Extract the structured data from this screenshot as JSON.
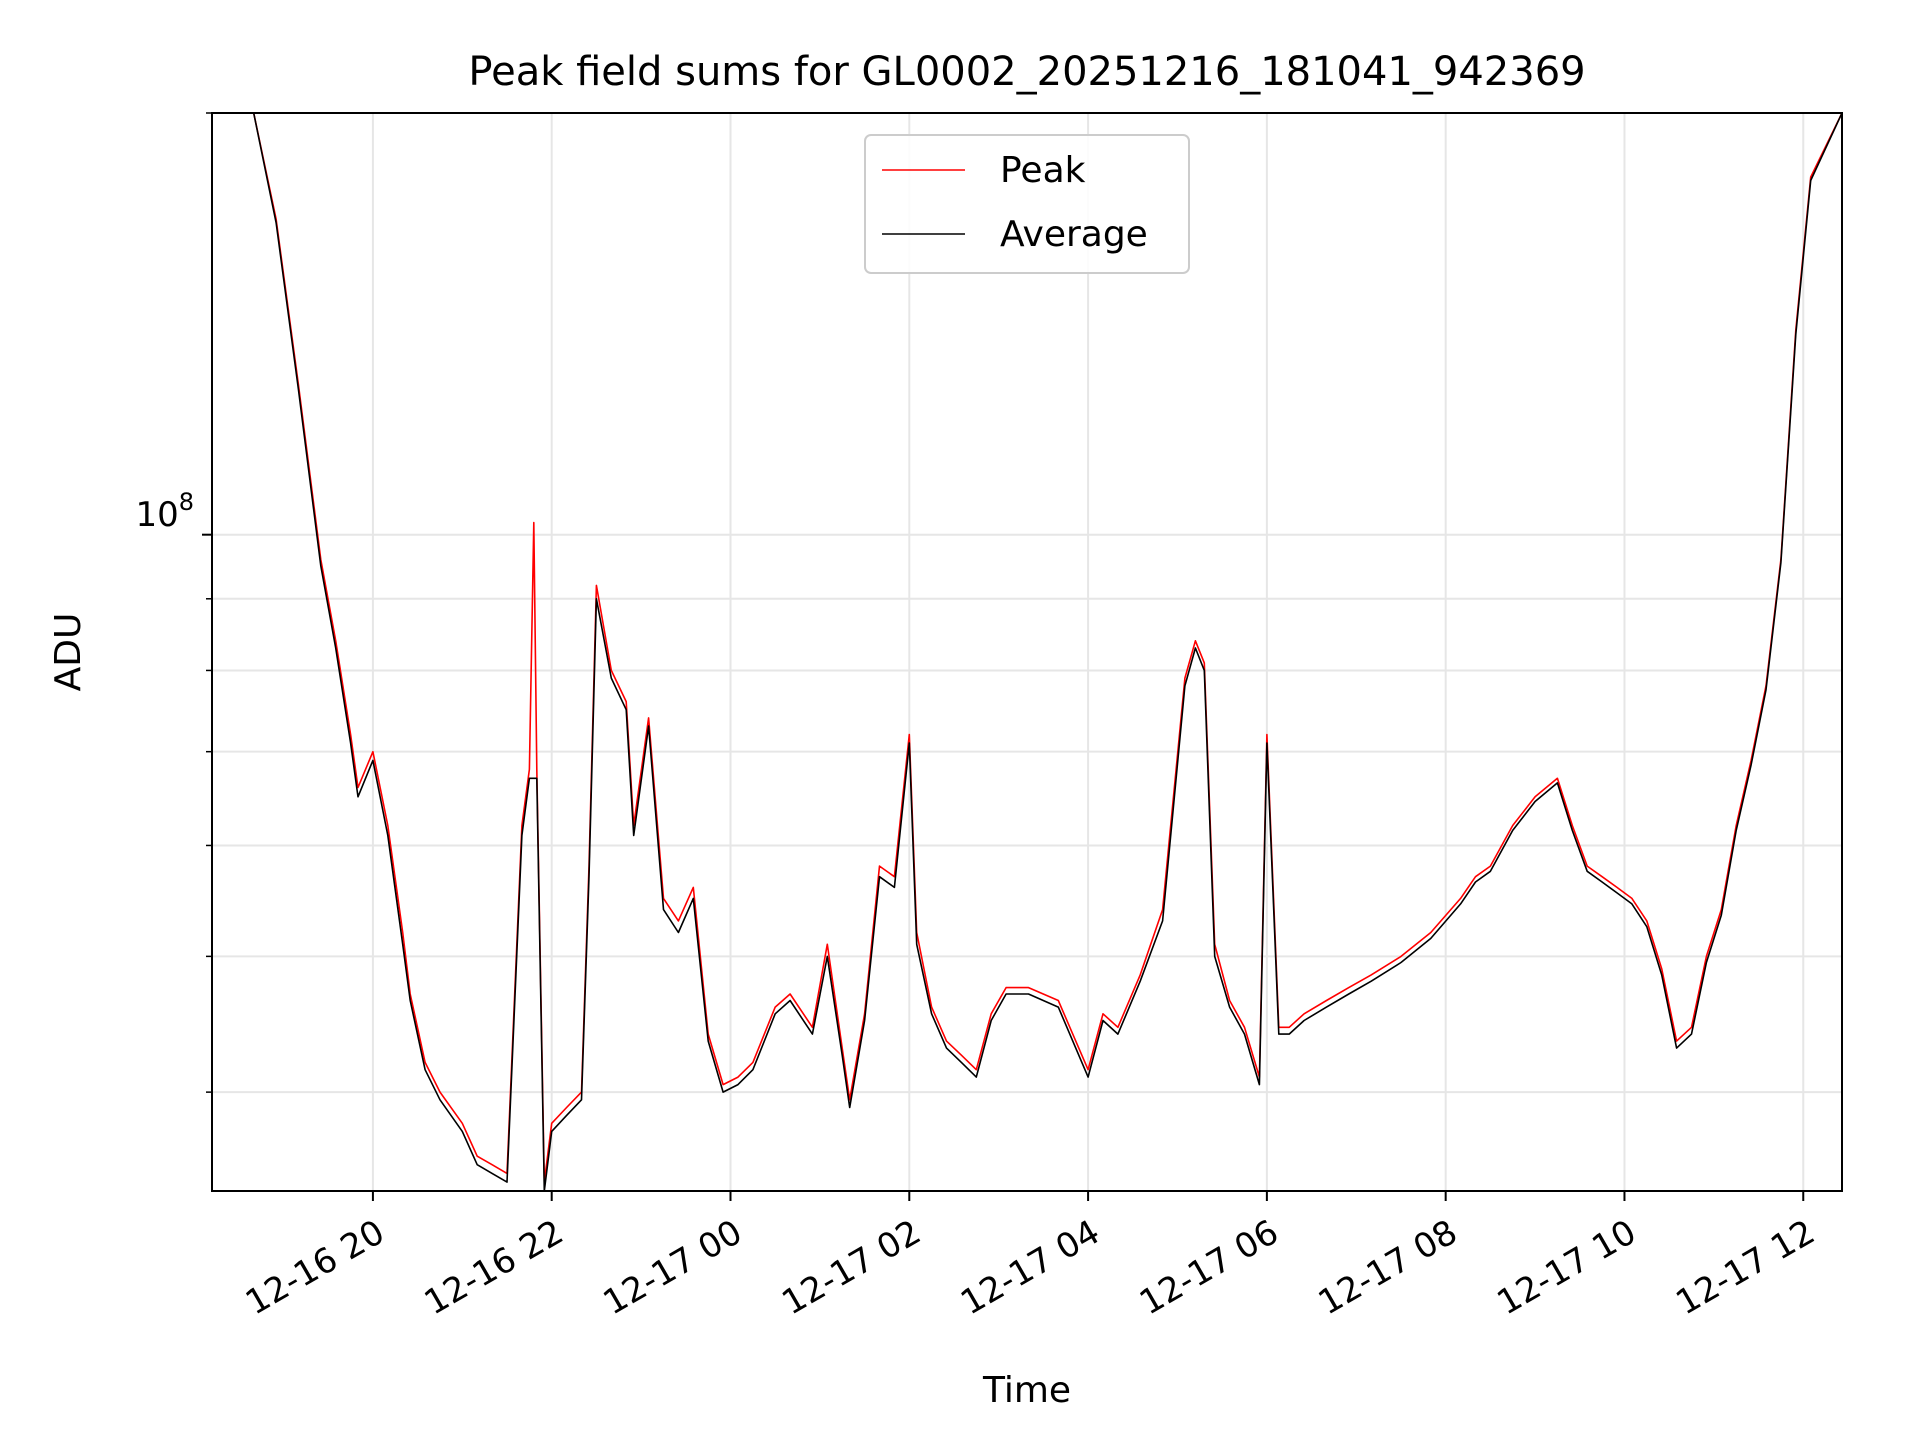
{
  "chart_data": {
    "type": "line",
    "title": "Peak field sums for GL0002_20251216_181041_942369",
    "xlabel": "Time",
    "ylabel": "ADU",
    "y_scale": "log",
    "ylim": [
      34000000,
      200000000
    ],
    "xlim": [
      "2025-12-16 18:12",
      "2025-12-17 12:26"
    ],
    "x_ticks": [
      "2025-12-16 20:00",
      "2025-12-16 22:00",
      "2025-12-17 00:00",
      "2025-12-17 02:00",
      "2025-12-17 04:00",
      "2025-12-17 06:00",
      "2025-12-17 08:00",
      "2025-12-17 10:00",
      "2025-12-17 12:00"
    ],
    "x_tick_labels": [
      "12-16 20",
      "12-16 22",
      "12-17 00",
      "12-17 02",
      "12-17 04",
      "12-17 06",
      "12-17 08",
      "12-17 10",
      "12-17 12"
    ],
    "y_tick_labels": [
      "10",
      "8"
    ],
    "grid": true,
    "legend_position": "upper center",
    "series": [
      {
        "name": "Peak",
        "color": "#ff0000",
        "x": [
          "2025-12-16 18:40",
          "2025-12-16 18:55",
          "2025-12-16 19:10",
          "2025-12-16 19:25",
          "2025-12-16 19:35",
          "2025-12-16 19:45",
          "2025-12-16 19:50",
          "2025-12-16 20:00",
          "2025-12-16 20:10",
          "2025-12-16 20:20",
          "2025-12-16 20:25",
          "2025-12-16 20:35",
          "2025-12-16 20:45",
          "2025-12-16 21:00",
          "2025-12-16 21:10",
          "2025-12-16 21:20",
          "2025-12-16 21:30",
          "2025-12-16 21:40",
          "2025-12-16 21:45",
          "2025-12-16 21:48",
          "2025-12-16 21:50",
          "2025-12-16 21:55",
          "2025-12-16 22:00",
          "2025-12-16 22:10",
          "2025-12-16 22:20",
          "2025-12-16 22:25",
          "2025-12-16 22:30",
          "2025-12-16 22:40",
          "2025-12-16 22:50",
          "2025-12-16 22:55",
          "2025-12-16 23:05",
          "2025-12-16 23:15",
          "2025-12-16 23:25",
          "2025-12-16 23:35",
          "2025-12-16 23:45",
          "2025-12-16 23:55",
          "2025-12-17 00:05",
          "2025-12-17 00:15",
          "2025-12-17 00:30",
          "2025-12-17 00:40",
          "2025-12-17 00:55",
          "2025-12-17 01:05",
          "2025-12-17 01:15",
          "2025-12-17 01:20",
          "2025-12-17 01:30",
          "2025-12-17 01:40",
          "2025-12-17 01:50",
          "2025-12-17 02:00",
          "2025-12-17 02:05",
          "2025-12-17 02:15",
          "2025-12-17 02:25",
          "2025-12-17 02:35",
          "2025-12-17 02:45",
          "2025-12-17 02:55",
          "2025-12-17 03:05",
          "2025-12-17 03:20",
          "2025-12-17 03:40",
          "2025-12-17 04:00",
          "2025-12-17 04:10",
          "2025-12-17 04:20",
          "2025-12-17 04:35",
          "2025-12-17 04:50",
          "2025-12-17 05:05",
          "2025-12-17 05:12",
          "2025-12-17 05:18",
          "2025-12-17 05:25",
          "2025-12-17 05:35",
          "2025-12-17 05:45",
          "2025-12-17 05:55",
          "2025-12-17 06:00",
          "2025-12-17 06:08",
          "2025-12-17 06:15",
          "2025-12-17 06:25",
          "2025-12-17 06:40",
          "2025-12-17 06:55",
          "2025-12-17 07:10",
          "2025-12-17 07:30",
          "2025-12-17 07:50",
          "2025-12-17 08:10",
          "2025-12-17 08:20",
          "2025-12-17 08:30",
          "2025-12-17 08:45",
          "2025-12-17 09:00",
          "2025-12-17 09:15",
          "2025-12-17 09:25",
          "2025-12-17 09:35",
          "2025-12-17 09:45",
          "2025-12-17 09:55",
          "2025-12-17 10:05",
          "2025-12-17 10:15",
          "2025-12-17 10:25",
          "2025-12-17 10:35",
          "2025-12-17 10:45",
          "2025-12-17 10:55",
          "2025-12-17 11:05",
          "2025-12-17 11:15",
          "2025-12-17 11:25",
          "2025-12-17 11:35",
          "2025-12-17 11:45",
          "2025-12-17 11:55",
          "2025-12-17 12:05",
          "2025-12-17 12:26"
        ],
        "values": [
          200000000,
          168000000,
          128000000,
          96000000,
          84000000,
          72000000,
          66000000,
          70000000,
          62000000,
          52000000,
          47000000,
          42000000,
          40000000,
          38000000,
          36000000,
          35500000,
          35000000,
          62000000,
          68000000,
          102000000,
          68000000,
          34500000,
          38000000,
          39000000,
          40000000,
          58000000,
          92000000,
          80000000,
          76000000,
          62000000,
          74000000,
          55000000,
          53000000,
          56000000,
          44000000,
          40500000,
          41000000,
          42000000,
          46000000,
          47000000,
          44500000,
          51000000,
          43000000,
          39500000,
          45500000,
          58000000,
          57000000,
          72000000,
          52000000,
          46000000,
          43500000,
          42500000,
          41500000,
          45500000,
          47500000,
          47500000,
          46500000,
          41500000,
          45500000,
          44500000,
          48500000,
          54000000,
          79000000,
          84000000,
          81000000,
          51000000,
          46500000,
          44500000,
          41000000,
          72000000,
          44500000,
          44500000,
          45500000,
          46500000,
          47500000,
          48500000,
          50000000,
          52000000,
          55000000,
          57000000,
          58000000,
          62000000,
          65000000,
          67000000,
          62000000,
          58000000,
          57000000,
          56000000,
          55000000,
          53000000,
          49000000,
          43500000,
          44500000,
          50000000,
          54000000,
          62000000,
          69000000,
          78000000,
          96000000,
          140000000,
          180000000,
          200000000
        ]
      },
      {
        "name": "Average",
        "color": "#000000",
        "x": [
          "2025-12-16 18:40",
          "2025-12-16 18:55",
          "2025-12-16 19:10",
          "2025-12-16 19:25",
          "2025-12-16 19:35",
          "2025-12-16 19:45",
          "2025-12-16 19:50",
          "2025-12-16 20:00",
          "2025-12-16 20:10",
          "2025-12-16 20:20",
          "2025-12-16 20:25",
          "2025-12-16 20:35",
          "2025-12-16 20:45",
          "2025-12-16 21:00",
          "2025-12-16 21:10",
          "2025-12-16 21:20",
          "2025-12-16 21:30",
          "2025-12-16 21:40",
          "2025-12-16 21:45",
          "2025-12-16 21:48",
          "2025-12-16 21:50",
          "2025-12-16 21:55",
          "2025-12-16 22:00",
          "2025-12-16 22:10",
          "2025-12-16 22:20",
          "2025-12-16 22:25",
          "2025-12-16 22:30",
          "2025-12-16 22:40",
          "2025-12-16 22:50",
          "2025-12-16 22:55",
          "2025-12-16 23:05",
          "2025-12-16 23:15",
          "2025-12-16 23:25",
          "2025-12-16 23:35",
          "2025-12-16 23:45",
          "2025-12-16 23:55",
          "2025-12-17 00:05",
          "2025-12-17 00:15",
          "2025-12-17 00:30",
          "2025-12-17 00:40",
          "2025-12-17 00:55",
          "2025-12-17 01:05",
          "2025-12-17 01:15",
          "2025-12-17 01:20",
          "2025-12-17 01:30",
          "2025-12-17 01:40",
          "2025-12-17 01:50",
          "2025-12-17 02:00",
          "2025-12-17 02:05",
          "2025-12-17 02:15",
          "2025-12-17 02:25",
          "2025-12-17 02:35",
          "2025-12-17 02:45",
          "2025-12-17 02:55",
          "2025-12-17 03:05",
          "2025-12-17 03:20",
          "2025-12-17 03:40",
          "2025-12-17 04:00",
          "2025-12-17 04:10",
          "2025-12-17 04:20",
          "2025-12-17 04:35",
          "2025-12-17 04:50",
          "2025-12-17 05:05",
          "2025-12-17 05:12",
          "2025-12-17 05:18",
          "2025-12-17 05:25",
          "2025-12-17 05:35",
          "2025-12-17 05:45",
          "2025-12-17 05:55",
          "2025-12-17 06:00",
          "2025-12-17 06:08",
          "2025-12-17 06:15",
          "2025-12-17 06:25",
          "2025-12-17 06:40",
          "2025-12-17 06:55",
          "2025-12-17 07:10",
          "2025-12-17 07:30",
          "2025-12-17 07:50",
          "2025-12-17 08:10",
          "2025-12-17 08:20",
          "2025-12-17 08:30",
          "2025-12-17 08:45",
          "2025-12-17 09:00",
          "2025-12-17 09:15",
          "2025-12-17 09:25",
          "2025-12-17 09:35",
          "2025-12-17 09:45",
          "2025-12-17 09:55",
          "2025-12-17 10:05",
          "2025-12-17 10:15",
          "2025-12-17 10:25",
          "2025-12-17 10:35",
          "2025-12-17 10:45",
          "2025-12-17 10:55",
          "2025-12-17 11:05",
          "2025-12-17 11:15",
          "2025-12-17 11:25",
          "2025-12-17 11:35",
          "2025-12-17 11:45",
          "2025-12-17 11:55",
          "2025-12-17 12:05",
          "2025-12-17 12:26"
        ],
        "values": [
          200000000,
          167000000,
          127000000,
          95000000,
          83000000,
          71000000,
          65000000,
          69000000,
          61000000,
          51000000,
          46500000,
          41500000,
          39500000,
          37500000,
          35500000,
          35000000,
          34500000,
          61000000,
          67000000,
          67000000,
          67000000,
          34000000,
          37500000,
          38500000,
          39500000,
          57000000,
          90000000,
          79000000,
          75000000,
          61000000,
          73000000,
          54000000,
          52000000,
          55000000,
          43500000,
          40000000,
          40500000,
          41500000,
          45500000,
          46500000,
          44000000,
          50000000,
          42500000,
          39000000,
          45000000,
          57000000,
          56000000,
          71000000,
          51000000,
          45500000,
          43000000,
          42000000,
          41000000,
          45000000,
          47000000,
          47000000,
          46000000,
          41000000,
          45000000,
          44000000,
          48000000,
          53000000,
          78000000,
          83000000,
          80000000,
          50000000,
          46000000,
          44000000,
          40500000,
          71000000,
          44000000,
          44000000,
          45000000,
          46000000,
          47000000,
          48000000,
          49500000,
          51500000,
          54500000,
          56500000,
          57500000,
          61500000,
          64500000,
          66500000,
          61500000,
          57500000,
          56500000,
          55500000,
          54500000,
          52500000,
          48500000,
          43000000,
          44000000,
          49500000,
          53500000,
          61500000,
          68500000,
          77500000,
          95500000,
          139000000,
          179000000,
          200000000
        ]
      }
    ]
  }
}
